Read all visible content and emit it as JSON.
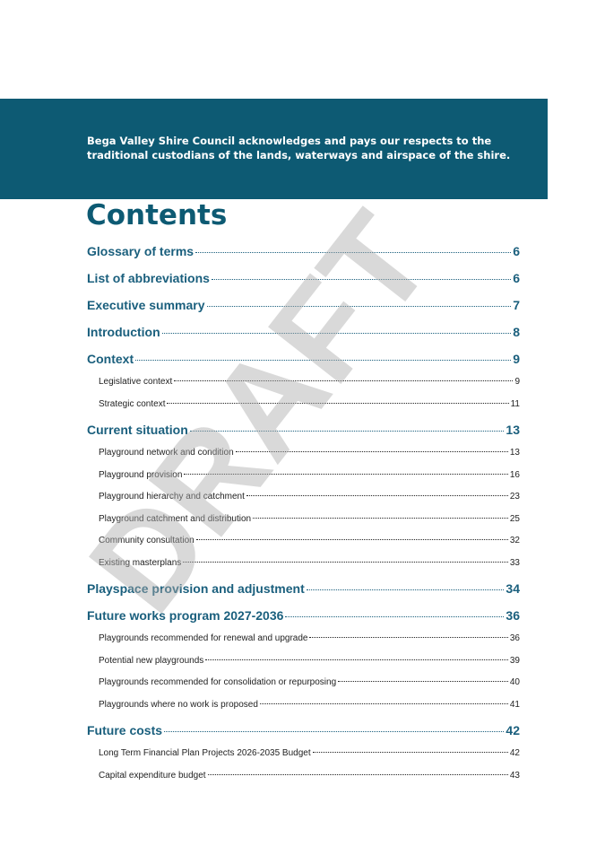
{
  "banner": {
    "lines": [
      "Bega Valley Shire Council acknowledges and pays our respects to the",
      "traditional custodians of the lands, waterways and airspace of the shire."
    ]
  },
  "contents": {
    "title": "Contents",
    "entries": [
      {
        "title": "Glossary of terms",
        "page": "6",
        "level": 1
      },
      {
        "title": "List of abbreviations",
        "page": "6",
        "level": 1
      },
      {
        "title": "Executive summary",
        "page": "7",
        "level": 1
      },
      {
        "title": "Introduction",
        "page": "8",
        "level": 1
      },
      {
        "title": "Context",
        "page": "9",
        "level": 1
      },
      {
        "title": "Legislative context",
        "page": "9",
        "level": 2
      },
      {
        "title": "Strategic context",
        "page": "11",
        "level": 2
      },
      {
        "title": "Current situation",
        "page": "13",
        "level": 1
      },
      {
        "title": "Playground network and condition",
        "page": "13",
        "level": 2
      },
      {
        "title": "Playground provision",
        "page": "16",
        "level": 2
      },
      {
        "title": "Playground hierarchy and catchment",
        "page": "23",
        "level": 2
      },
      {
        "title": "Playground catchment and distribution",
        "page": "25",
        "level": 2
      },
      {
        "title": "Community consultation",
        "page": "32",
        "level": 2
      },
      {
        "title": "Existing masterplans",
        "page": "33",
        "level": 2
      },
      {
        "title": "Playspace provision and adjustment",
        "page": "34",
        "level": 1
      },
      {
        "title": "Future works program 2027-2036",
        "page": "36",
        "level": 1
      },
      {
        "title": "Playgrounds recommended for renewal and upgrade",
        "page": "36",
        "level": 2
      },
      {
        "title": "Potential new playgrounds",
        "page": "39",
        "level": 2
      },
      {
        "title": "Playgrounds recommended for consolidation or repurposing",
        "page": "40",
        "level": 2
      },
      {
        "title": "Playgrounds where no work is proposed",
        "page": "41",
        "level": 2
      },
      {
        "title": "Future costs",
        "page": "42",
        "level": 1
      },
      {
        "title": "Long Term Financial Plan Projects 2026-2035 Budget",
        "page": "42",
        "level": 2
      },
      {
        "title": "Capital expenditure budget",
        "page": "43",
        "level": 2
      }
    ]
  },
  "watermark": "DRAFT"
}
